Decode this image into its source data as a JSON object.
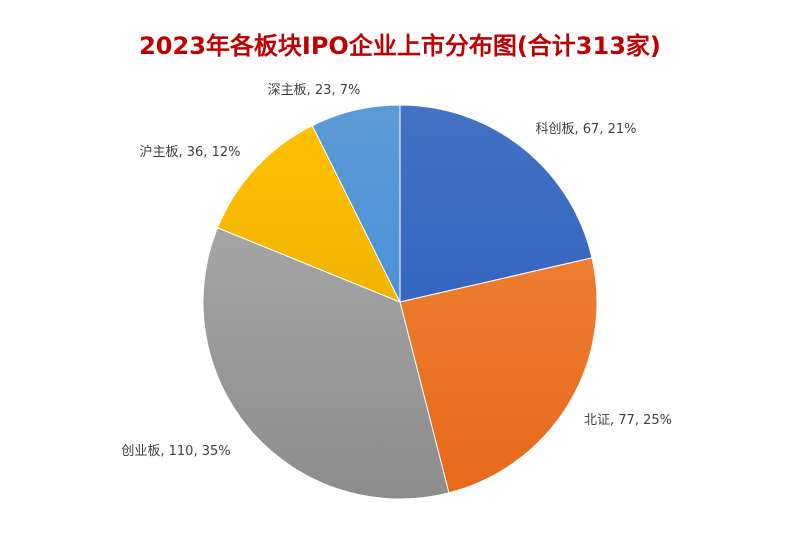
{
  "chart_data": {
    "type": "pie",
    "title": "2023年各板块IPO企业上市分布图(合计313家)",
    "categories": [
      "科创板",
      "北证",
      "创业板",
      "沪主板",
      "深主板"
    ],
    "values": [
      67,
      77,
      110,
      36,
      23
    ],
    "percent_labels": [
      "21%",
      "25%",
      "35%",
      "12%",
      "7%"
    ],
    "data_labels": [
      "科创板, 67, 21%",
      "北证, 77, 25%",
      "创业板, 110, 35%",
      "沪主板, 36, 12%",
      "深主板, 23, 7%"
    ],
    "colors": [
      "#4472c4",
      "#ed7d31",
      "#a5a5a5",
      "#ffc000",
      "#5b9bd5"
    ],
    "colors_dark": [
      "#3566c0",
      "#e8681a",
      "#8c8c8c",
      "#f0b400",
      "#4a92d6"
    ],
    "start_angle_deg": 0,
    "direction": "clockwise",
    "legend": "none"
  }
}
